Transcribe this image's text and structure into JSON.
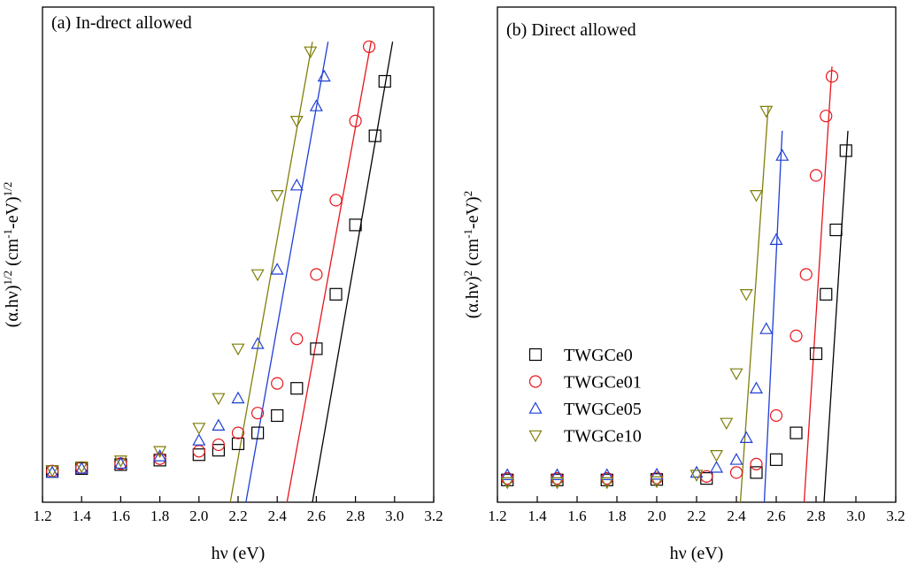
{
  "chart_data": [
    {
      "type": "scatter",
      "title": "(a) In-drect allowed",
      "xlabel": "hν (eV)",
      "ylabel": [
        {
          "text": "(α.hν)"
        },
        {
          "text": "1/2",
          "sup": true
        },
        {
          "text": " (cm"
        },
        {
          "text": "-1",
          "sup": true
        },
        {
          "text": "-eV)"
        },
        {
          "text": "1/2",
          "sup": true
        }
      ],
      "xlim": [
        1.2,
        3.2
      ],
      "ylim": [
        0,
        100
      ],
      "xticks": [
        1.2,
        1.4,
        1.6,
        1.8,
        {
          "value": 2,
          "label": "2.0"
        },
        2.2,
        2.4,
        2.6,
        2.8,
        {
          "value": 3,
          "label": "3.0"
        },
        3.2
      ],
      "series": [
        {
          "name": "TWGCe0",
          "color": "#000000",
          "marker": "square",
          "x": [
            1.25,
            1.4,
            1.6,
            1.8,
            2.0,
            2.1,
            2.2,
            2.3,
            2.4,
            2.5,
            2.6,
            2.7,
            2.8,
            2.9,
            2.95
          ],
          "values": [
            6.2,
            6.8,
            7.6,
            8.5,
            9.6,
            10.5,
            11.8,
            14,
            17.5,
            23,
            31,
            42,
            56,
            74,
            85
          ]
        },
        {
          "name": "TWGCe01",
          "color": "#e8141c",
          "marker": "circle",
          "x": [
            1.25,
            1.4,
            1.6,
            1.8,
            2.0,
            2.1,
            2.2,
            2.3,
            2.4,
            2.5,
            2.6,
            2.7,
            2.8,
            2.87
          ],
          "values": [
            6.3,
            7,
            7.8,
            8.8,
            10.3,
            11.6,
            14,
            18,
            24,
            33,
            46,
            61,
            77,
            92
          ]
        },
        {
          "name": "TWGCe05",
          "color": "#1f3fd6",
          "marker": "triangle-up",
          "x": [
            1.25,
            1.4,
            1.6,
            1.8,
            2.0,
            2.1,
            2.2,
            2.3,
            2.4,
            2.5,
            2.6,
            2.64
          ],
          "values": [
            6,
            6.8,
            7.8,
            9.3,
            12.5,
            15.5,
            21,
            32,
            47,
            64,
            80,
            86
          ]
        },
        {
          "name": "TWGCe10",
          "color": "#7f7f0a",
          "marker": "triangle-down",
          "x": [
            1.25,
            1.4,
            1.6,
            1.8,
            2.0,
            2.1,
            2.2,
            2.3,
            2.4,
            2.5,
            2.57
          ],
          "values": [
            6.4,
            7.2,
            8.4,
            10.3,
            15,
            21,
            31,
            46,
            62,
            77,
            91
          ]
        }
      ],
      "fits": [
        {
          "color": "#000000",
          "x": [
            2.58,
            2.99
          ],
          "values": [
            0,
            93
          ]
        },
        {
          "color": "#e8141c",
          "x": [
            2.45,
            2.88
          ],
          "values": [
            0,
            93
          ]
        },
        {
          "color": "#1f3fd6",
          "x": [
            2.24,
            2.66
          ],
          "values": [
            0,
            93
          ]
        },
        {
          "color": "#7f7f0a",
          "x": [
            2.16,
            2.58
          ],
          "values": [
            0,
            93
          ]
        }
      ]
    },
    {
      "type": "scatter",
      "title": "(b) Direct allowed",
      "xlabel": "hν (eV)",
      "ylabel": [
        {
          "text": "(α.hν)"
        },
        {
          "text": "2",
          "sup": true
        },
        {
          "text": " (cm"
        },
        {
          "text": "-1",
          "sup": true
        },
        {
          "text": "-eV)"
        },
        {
          "text": "2",
          "sup": true
        }
      ],
      "xlim": [
        1.2,
        3.2
      ],
      "ylim": [
        0,
        100
      ],
      "xticks": [
        1.2,
        1.4,
        1.6,
        1.8,
        {
          "value": 2,
          "label": "2.0"
        },
        2.2,
        2.4,
        2.6,
        2.8,
        {
          "value": 3,
          "label": "3.0"
        },
        3.2
      ],
      "legend": "left",
      "series": [
        {
          "name": "TWGCe0",
          "color": "#000000",
          "marker": "square",
          "x": [
            1.25,
            1.5,
            1.75,
            2.0,
            2.25,
            2.5,
            2.6,
            2.7,
            2.8,
            2.85,
            2.9,
            2.95
          ],
          "values": [
            4.5,
            4.5,
            4.5,
            4.6,
            4.8,
            6,
            8.6,
            14,
            30,
            42,
            55,
            71
          ]
        },
        {
          "name": "TWGCe01",
          "color": "#e8141c",
          "marker": "circle",
          "x": [
            1.25,
            1.5,
            1.75,
            2.0,
            2.25,
            2.4,
            2.5,
            2.6,
            2.7,
            2.75,
            2.8,
            2.85,
            2.88
          ],
          "values": [
            4.8,
            4.8,
            4.8,
            4.9,
            5.2,
            6,
            7.7,
            17.5,
            33.6,
            46,
            66,
            78,
            86
          ]
        },
        {
          "name": "TWGCe05",
          "color": "#1f3fd6",
          "marker": "triangle-up",
          "x": [
            1.25,
            1.5,
            1.75,
            2.0,
            2.2,
            2.3,
            2.4,
            2.45,
            2.5,
            2.55,
            2.6,
            2.63
          ],
          "values": [
            5.5,
            5.5,
            5.5,
            5.6,
            6,
            7,
            8.6,
            13,
            23,
            35,
            53,
            70
          ]
        },
        {
          "name": "TWGCe10",
          "color": "#7f7f0a",
          "marker": "triangle-down",
          "x": [
            1.25,
            1.5,
            1.75,
            2.0,
            2.2,
            2.3,
            2.35,
            2.4,
            2.45,
            2.5,
            2.55
          ],
          "values": [
            4,
            4,
            4,
            4.2,
            5.5,
            9.5,
            16,
            26,
            42,
            62,
            79
          ]
        }
      ],
      "fits": [
        {
          "color": "#000000",
          "x": [
            2.84,
            2.96
          ],
          "values": [
            0,
            75
          ]
        },
        {
          "color": "#e8141c",
          "x": [
            2.74,
            2.88
          ],
          "values": [
            0,
            88
          ]
        },
        {
          "color": "#1f3fd6",
          "x": [
            2.54,
            2.63
          ],
          "values": [
            0,
            75
          ]
        },
        {
          "color": "#7f7f0a",
          "x": [
            2.42,
            2.56
          ],
          "values": [
            0,
            80
          ]
        }
      ]
    }
  ]
}
